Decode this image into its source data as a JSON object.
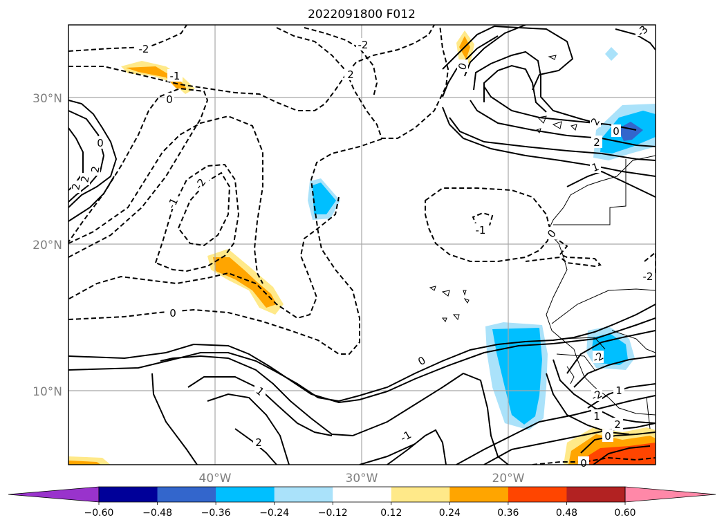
{
  "title": "2022091800 F012",
  "latitude_labels": [
    "30°N",
    "20°N",
    "10°N"
  ],
  "longitude_labels": [
    "40°W",
    "30°W",
    "20°W"
  ],
  "colorbar": {
    "ticks": [
      "−0.60",
      "−0.48",
      "−0.36",
      "−0.24",
      "−0.12",
      "0.12",
      "0.24",
      "0.36",
      "0.48",
      "0.60"
    ],
    "colors": [
      "#9933cc",
      "#000099",
      "#3366cc",
      "#00bfff",
      "#aae2fa",
      "#ffffff",
      "#ffe989",
      "#ffa500",
      "#ff4500",
      "#b22222",
      "#ff88a8"
    ],
    "extend": "both"
  },
  "contour_labels": [
    "2",
    "2",
    "-2",
    "-1",
    "0",
    "0",
    "-1",
    "-2",
    "-2",
    "0",
    "-1",
    "2",
    "1",
    "1",
    "2",
    "-1",
    "0",
    "0",
    "0",
    "1",
    "2",
    "2",
    "-2",
    "-2",
    "1",
    "0",
    "-2",
    "2",
    "0",
    "-3",
    "2",
    "0"
  ],
  "map": {
    "projection": "cylindrical",
    "extent": {
      "lon_west": -50,
      "lon_east": -10,
      "lat_south": 5,
      "lat_north": 35
    },
    "gridlines": true
  }
}
